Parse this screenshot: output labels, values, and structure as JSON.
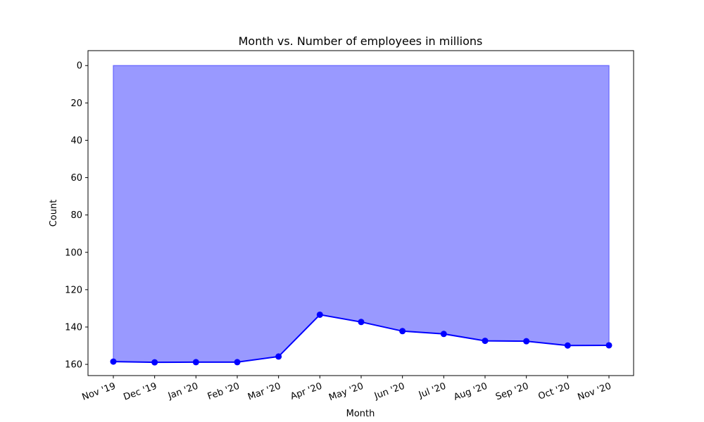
{
  "chart_data": {
    "type": "area",
    "title": "Month vs. Number of employees in millions",
    "xlabel": "Month",
    "ylabel": "Count",
    "categories": [
      "Nov '19",
      "Dec '19",
      "Jan '20",
      "Feb '20",
      "Mar '20",
      "Apr '20",
      "May '20",
      "Jun '20",
      "Jul '20",
      "Aug '20",
      "Sep '20",
      "Oct '20",
      "Nov '20"
    ],
    "values": [
      158.5,
      158.9,
      158.8,
      158.8,
      155.8,
      133.4,
      137.3,
      142.2,
      143.7,
      147.4,
      147.6,
      149.9,
      149.8
    ],
    "yticks": [
      0,
      20,
      40,
      60,
      80,
      100,
      120,
      140,
      160
    ],
    "ylim": [
      166,
      -8
    ],
    "y_inverted": true,
    "fill_color": "#9999ff",
    "fill_edge_color": "#6666ff",
    "line_color": "#0000ff",
    "marker": "circle",
    "grid": false
  }
}
